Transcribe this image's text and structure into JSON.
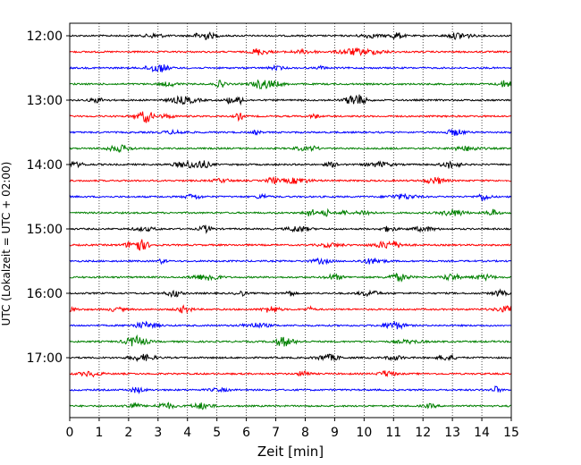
{
  "chart_data": {
    "type": "line",
    "xlabel": "Zeit  [min]",
    "ylabel": "UTC (Lokalzeit = UTC + 02:00)",
    "xlim": [
      0,
      15
    ],
    "x_ticks": [
      "0",
      "1",
      "2",
      "3",
      "4",
      "5",
      "6",
      "7",
      "8",
      "9",
      "10",
      "11",
      "12",
      "13",
      "14",
      "15"
    ],
    "y_tick_labels": [
      "12:00",
      "13:00",
      "14:00",
      "15:00",
      "16:00",
      "17:00"
    ],
    "grid": "vertical-dotted",
    "trace_colors": [
      "#000000",
      "#ff0000",
      "#0000ff",
      "#008000"
    ],
    "traces": [
      {
        "time": "12:00",
        "color": "#000000"
      },
      {
        "time": "12:15",
        "color": "#ff0000"
      },
      {
        "time": "12:30",
        "color": "#0000ff"
      },
      {
        "time": "12:45",
        "color": "#008000"
      },
      {
        "time": "13:00",
        "color": "#000000"
      },
      {
        "time": "13:15",
        "color": "#ff0000"
      },
      {
        "time": "13:30",
        "color": "#0000ff"
      },
      {
        "time": "13:45",
        "color": "#008000"
      },
      {
        "time": "14:00",
        "color": "#000000"
      },
      {
        "time": "14:15",
        "color": "#ff0000"
      },
      {
        "time": "14:30",
        "color": "#0000ff"
      },
      {
        "time": "14:45",
        "color": "#008000"
      },
      {
        "time": "15:00",
        "color": "#000000"
      },
      {
        "time": "15:15",
        "color": "#ff0000"
      },
      {
        "time": "15:30",
        "color": "#0000ff"
      },
      {
        "time": "15:45",
        "color": "#008000"
      },
      {
        "time": "16:00",
        "color": "#000000"
      },
      {
        "time": "16:15",
        "color": "#ff0000"
      },
      {
        "time": "16:30",
        "color": "#0000ff"
      },
      {
        "time": "16:45",
        "color": "#008000"
      },
      {
        "time": "17:00",
        "color": "#000000"
      },
      {
        "time": "17:15",
        "color": "#ff0000"
      },
      {
        "time": "17:30",
        "color": "#0000ff"
      },
      {
        "time": "17:45",
        "color": "#008000"
      }
    ]
  }
}
